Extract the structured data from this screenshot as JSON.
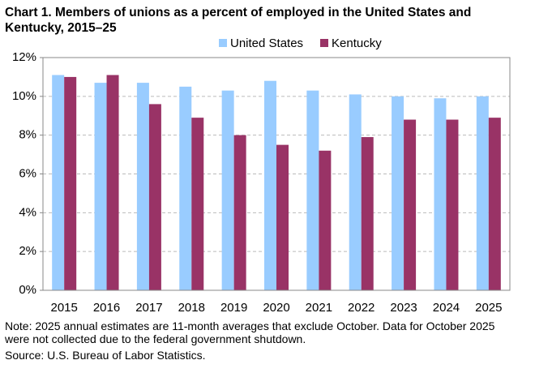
{
  "chart_data": {
    "type": "bar",
    "title": "Chart 1. Members of unions as a percent of employed in the United States and Kentucky, 2015–25",
    "note": "Note: 2025 annual estimates are 11-month averages that exclude October. Data for October 2025 were not collected due to the federal government shutdown.",
    "source": "Source: U.S. Bureau of Labor Statistics.",
    "categories": [
      "2015",
      "2016",
      "2017",
      "2018",
      "2019",
      "2020",
      "2021",
      "2022",
      "2023",
      "2024",
      "2025"
    ],
    "series": [
      {
        "name": "United States",
        "color": "#99ccff",
        "values": [
          11.1,
          10.7,
          10.7,
          10.5,
          10.3,
          10.8,
          10.3,
          10.1,
          10.0,
          9.9,
          10.0
        ]
      },
      {
        "name": "Kentucky",
        "color": "#993366",
        "values": [
          11.0,
          11.1,
          9.6,
          8.9,
          8.0,
          7.5,
          7.2,
          7.9,
          8.8,
          8.8,
          8.9
        ]
      }
    ],
    "ylim": [
      0,
      12
    ],
    "yticks": [
      {
        "value": 0,
        "label": "0%"
      },
      {
        "value": 2,
        "label": "2%"
      },
      {
        "value": 4,
        "label": "4%"
      },
      {
        "value": 6,
        "label": "6%"
      },
      {
        "value": 8,
        "label": "8%"
      },
      {
        "value": 10,
        "label": "10%"
      },
      {
        "value": 12,
        "label": "12%"
      }
    ],
    "grid": true,
    "legend": "top"
  }
}
